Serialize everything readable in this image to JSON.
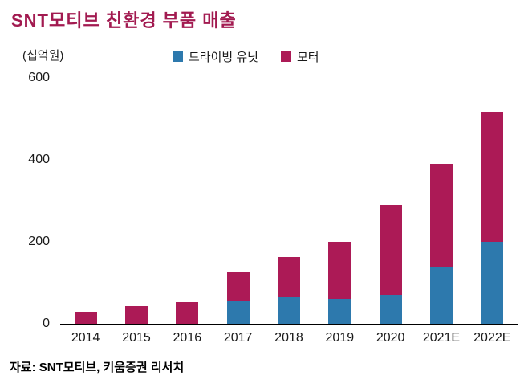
{
  "title": "SNT모티브 친환경 부품 매출",
  "unit_label": "(십억원)",
  "source": "자료: SNT모티브, 키움증권 리서치",
  "colors": {
    "driving_unit": "#2d79ad",
    "motor": "#ac1a56",
    "title": "#a21a50",
    "axis": "#000000"
  },
  "chart_data": {
    "type": "bar",
    "stacked": true,
    "title": "SNT모티브 친환경 부품 매출",
    "ylabel": "(십억원)",
    "categories": [
      "2014",
      "2015",
      "2016",
      "2017",
      "2018",
      "2019",
      "2020",
      "2021E",
      "2022E"
    ],
    "series": [
      {
        "name": "드라이빙 유닛",
        "color": "#2d79ad",
        "values": [
          0,
          0,
          0,
          55,
          65,
          60,
          70,
          140,
          200
        ]
      },
      {
        "name": "모터",
        "color": "#ac1a56",
        "values": [
          27,
          43,
          52,
          70,
          98,
          140,
          220,
          250,
          315
        ]
      }
    ],
    "ylim": [
      0,
      600
    ],
    "yticks": [
      0,
      200,
      400,
      600
    ],
    "grid": false,
    "legend_position": "top"
  }
}
